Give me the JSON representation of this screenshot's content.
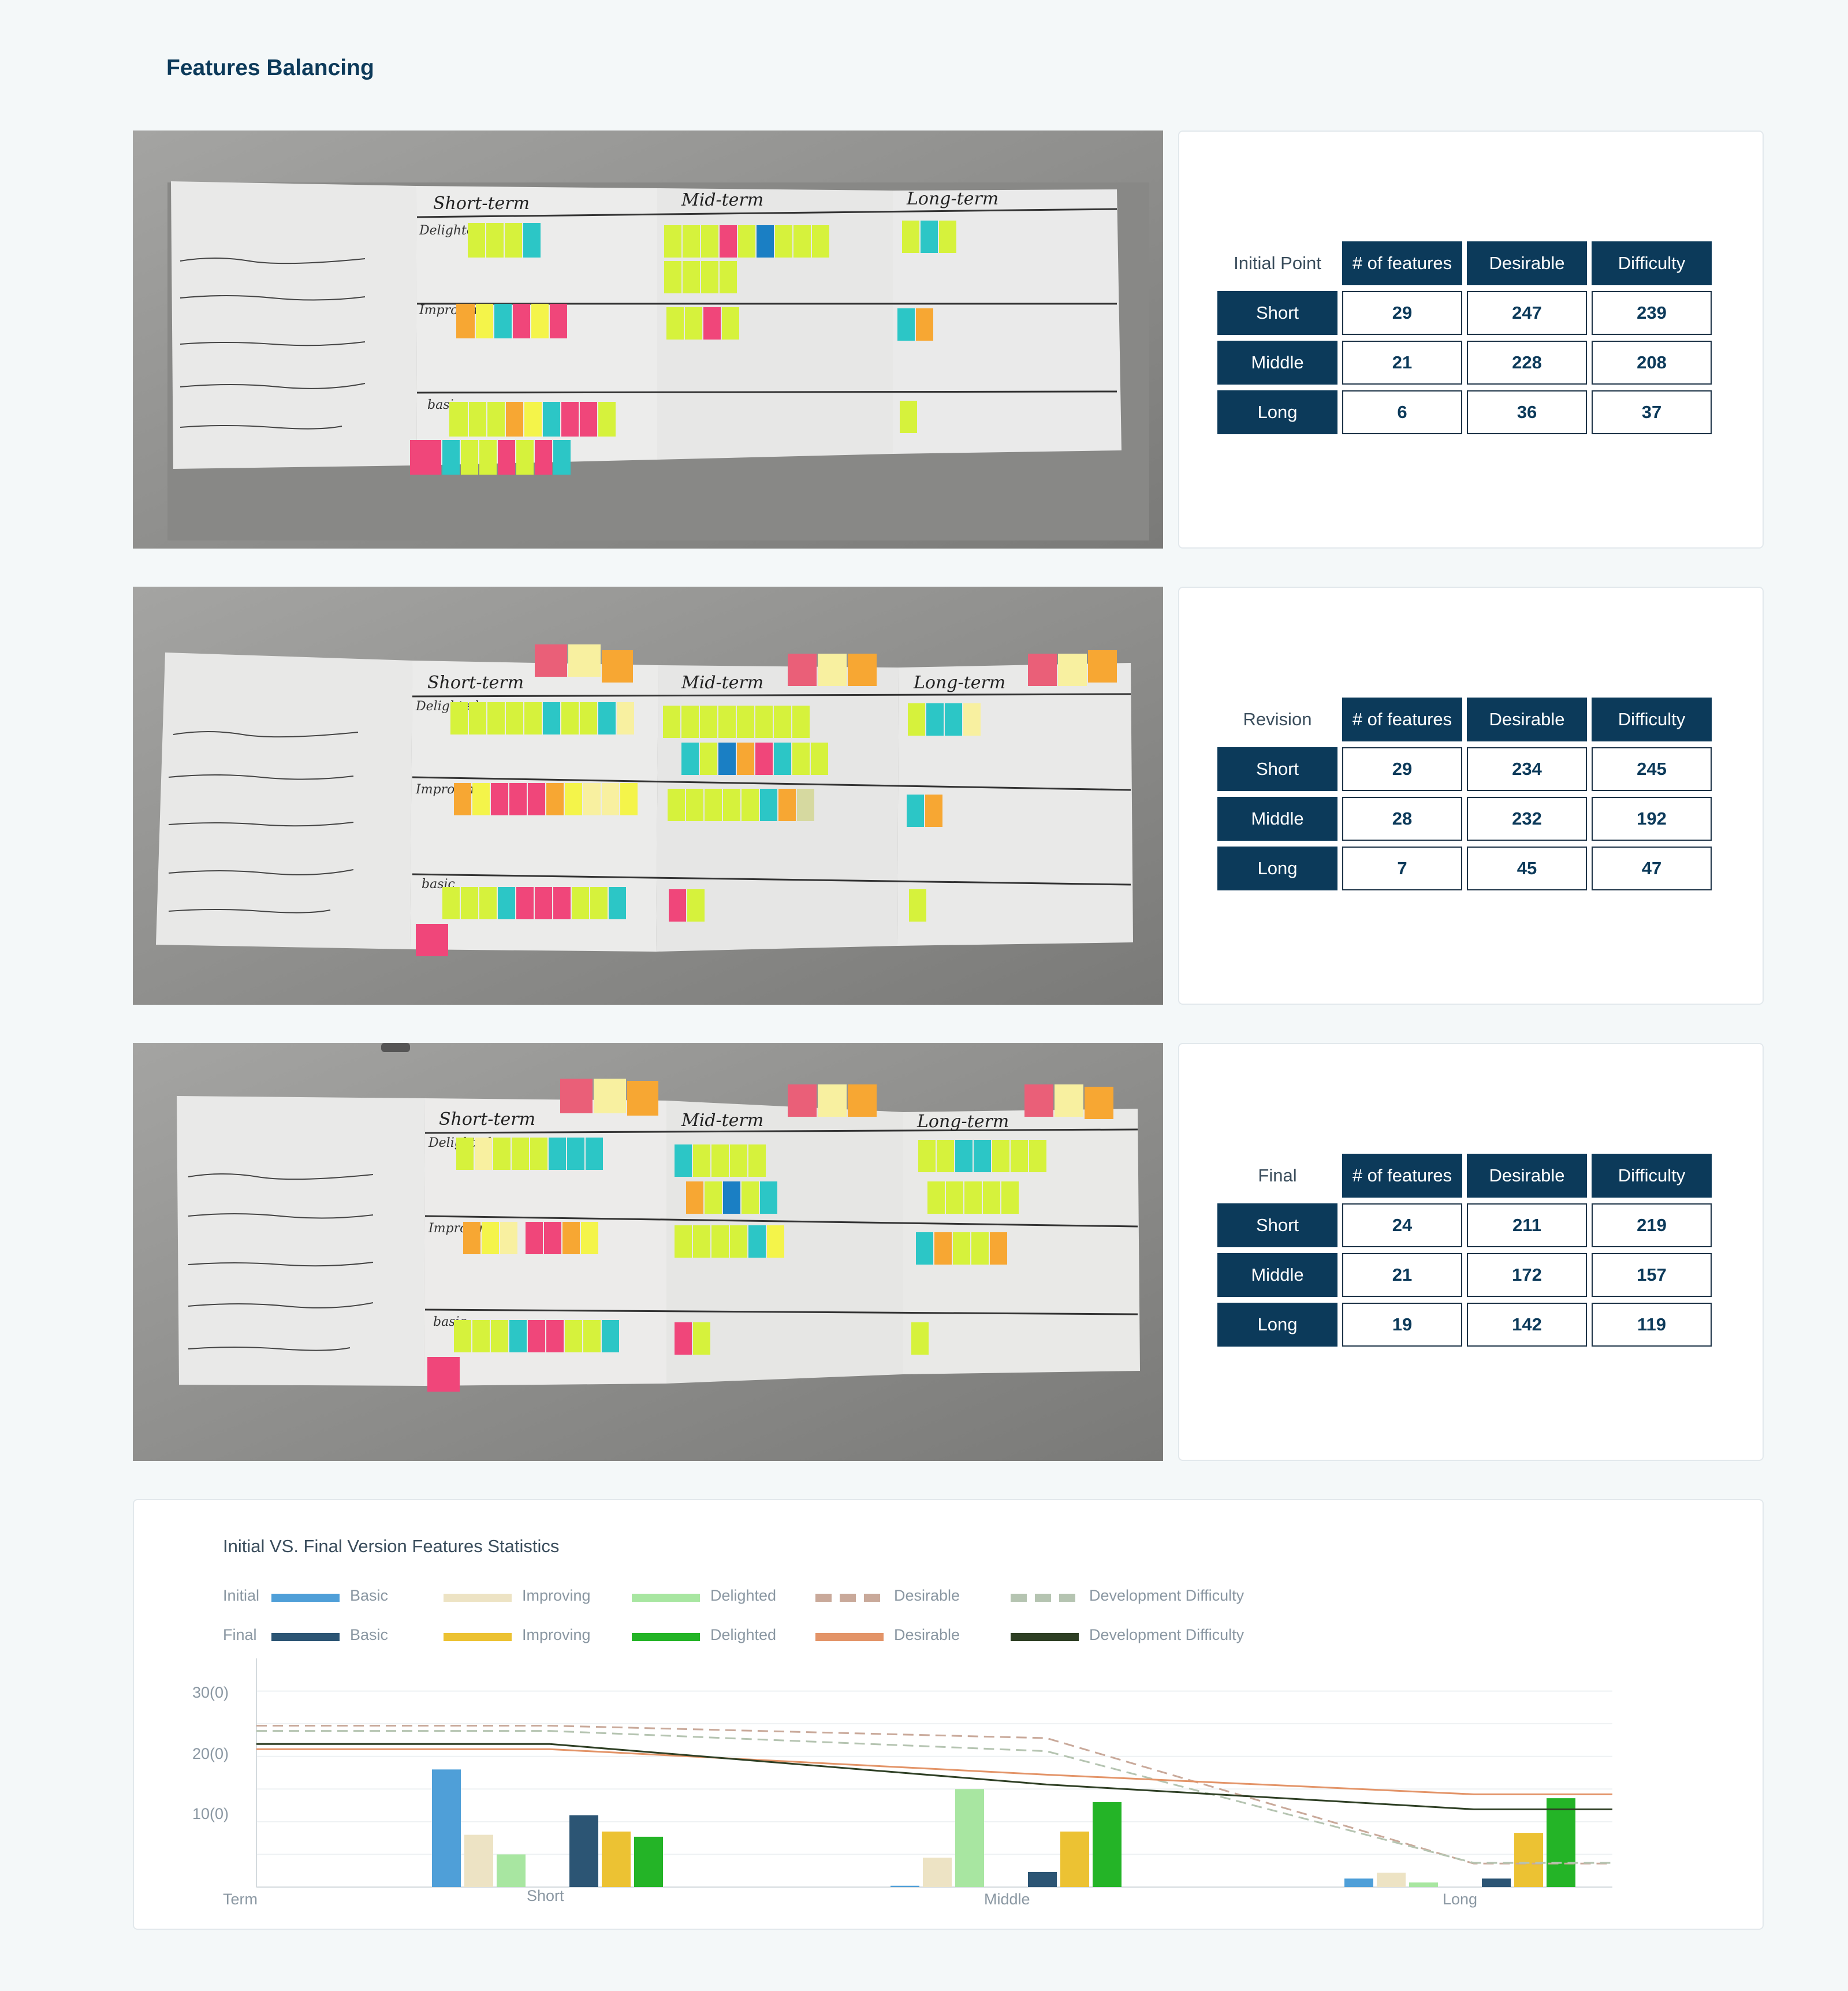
{
  "page": {
    "title": "Features Balancing"
  },
  "panels": [
    {
      "label": "Initial Point",
      "columns": [
        "# of features",
        "Desirable",
        "Difficulty"
      ],
      "rows": [
        {
          "term": "Short",
          "values": [
            "29",
            "247",
            "239"
          ]
        },
        {
          "term": "Middle",
          "values": [
            "21",
            "228",
            "208"
          ]
        },
        {
          "term": "Long",
          "values": [
            "6",
            "36",
            "37"
          ]
        }
      ]
    },
    {
      "label": "Revision",
      "columns": [
        "# of features",
        "Desirable",
        "Difficulty"
      ],
      "rows": [
        {
          "term": "Short",
          "values": [
            "29",
            "234",
            "245"
          ]
        },
        {
          "term": "Middle",
          "values": [
            "28",
            "232",
            "192"
          ]
        },
        {
          "term": "Long",
          "values": [
            "7",
            "45",
            "47"
          ]
        }
      ]
    },
    {
      "label": "Final",
      "columns": [
        "# of features",
        "Desirable",
        "Difficulty"
      ],
      "rows": [
        {
          "term": "Short",
          "values": [
            "24",
            "211",
            "219"
          ]
        },
        {
          "term": "Middle",
          "values": [
            "21",
            "172",
            "157"
          ]
        },
        {
          "term": "Long",
          "values": [
            "19",
            "142",
            "119"
          ]
        }
      ]
    }
  ],
  "photos": [
    {
      "headings": [
        "Short-term",
        "Mid-term",
        "Long-term"
      ],
      "rows": [
        "Delighted",
        "Improving",
        "basic"
      ]
    },
    {
      "headings": [
        "Short-term",
        "Mid-term",
        "Long-term"
      ],
      "rows": [
        "Delighted",
        "Improving",
        "basic"
      ]
    },
    {
      "headings": [
        "Short-term",
        "Mid-term",
        "Long-term"
      ],
      "rows": [
        "Delighted",
        "Improving",
        "basic"
      ]
    }
  ],
  "chart": {
    "title": "Initial VS. Final Version Features Statistics",
    "legend": {
      "initial_label": "Initial",
      "final_label": "Final",
      "items": [
        "Basic",
        "Improving",
        "Delighted",
        "Desirable",
        "Development Difficulty"
      ]
    },
    "y_ticks": [
      "30(0)",
      "20(0)",
      "10(0)"
    ],
    "x_axis_label": "Term",
    "colors": {
      "initial_basic": "#4f9fd8",
      "initial_improving": "#ede3c4",
      "initial_delighted": "#a8e6a1",
      "initial_desirable": "#c9a99a",
      "initial_difficulty": "#b5c4b1",
      "final_basic": "#2c5574",
      "final_improving": "#ecc233",
      "final_delighted": "#24b427",
      "final_desirable": "#e39468",
      "final_difficulty": "#2e3f24"
    }
  },
  "chart_data": {
    "type": "bar",
    "categories": [
      "Short",
      "Middle",
      "Long"
    ],
    "ylim": [
      0,
      35
    ],
    "series": [
      {
        "name": "Basic",
        "group": "Initial",
        "values": [
          18,
          0.2,
          1.3
        ]
      },
      {
        "name": "Improving",
        "group": "Initial",
        "values": [
          8,
          4.5,
          2.2
        ]
      },
      {
        "name": "Delighted",
        "group": "Initial",
        "values": [
          5,
          15,
          0.7
        ]
      },
      {
        "name": "Basic",
        "group": "Final",
        "values": [
          11,
          2.3,
          1.3
        ]
      },
      {
        "name": "Improving",
        "group": "Final",
        "values": [
          8.5,
          8.5,
          8.3
        ]
      },
      {
        "name": "Delighted",
        "group": "Final",
        "values": [
          7.7,
          13,
          13.6
        ]
      }
    ],
    "lines": [
      {
        "name": "Desirable",
        "group": "Initial",
        "style": "dashed",
        "values": [
          24.7,
          22.8,
          3.6
        ]
      },
      {
        "name": "Development Difficulty",
        "group": "Initial",
        "style": "dashed",
        "values": [
          23.9,
          20.8,
          3.7
        ]
      },
      {
        "name": "Desirable",
        "group": "Final",
        "style": "solid",
        "values": [
          21.1,
          17.2,
          14.2
        ]
      },
      {
        "name": "Development Difficulty",
        "group": "Final",
        "style": "solid",
        "values": [
          21.9,
          15.7,
          11.9
        ]
      }
    ]
  }
}
